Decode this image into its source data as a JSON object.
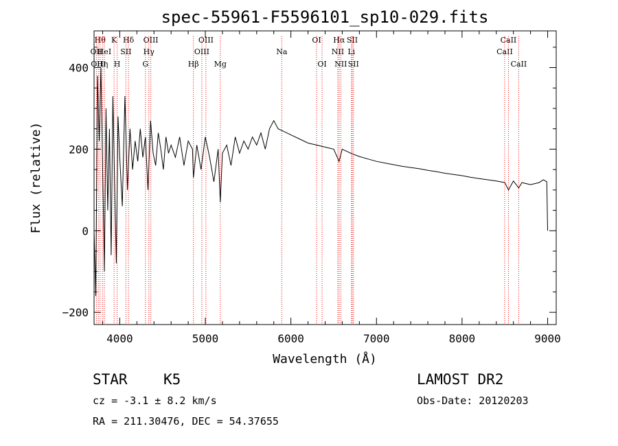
{
  "chart_data": {
    "type": "line",
    "title": "spec-55961-F5596101_sp10-029.fits",
    "xlabel": "Wavelength (Å)",
    "ylabel": "Flux (relative)",
    "xlim": [
      3700,
      9100
    ],
    "ylim": [
      -230,
      490
    ],
    "x_ticks": [
      4000,
      5000,
      6000,
      7000,
      8000,
      9000
    ],
    "y_ticks": [
      -200,
      0,
      200,
      400
    ],
    "grid": false,
    "line_color": "#000000",
    "marker_color": "#ff0000",
    "series": [
      {
        "x": [
          3700,
          3720,
          3740,
          3760,
          3780,
          3800,
          3820,
          3840,
          3860,
          3880,
          3900,
          3920,
          3940,
          3960,
          3980,
          4000,
          4030,
          4060,
          4090,
          4120,
          4150,
          4180,
          4210,
          4240,
          4270,
          4300,
          4330,
          4360,
          4390,
          4420,
          4450,
          4480,
          4510,
          4540,
          4570,
          4600,
          4650,
          4700,
          4750,
          4800,
          4850,
          4861,
          4900,
          4950,
          5000,
          5050,
          5100,
          5150,
          5175,
          5200,
          5250,
          5300,
          5350,
          5400,
          5450,
          5500,
          5550,
          5600,
          5650,
          5700,
          5750,
          5800,
          5850,
          5900,
          5950,
          6000,
          6100,
          6200,
          6300,
          6400,
          6500,
          6563,
          6600,
          6700,
          6800,
          6900,
          7000,
          7100,
          7200,
          7300,
          7400,
          7500,
          7600,
          7700,
          7800,
          7900,
          8000,
          8100,
          8200,
          8300,
          8400,
          8500,
          8542,
          8600,
          8662,
          8700,
          8800,
          8900,
          8950,
          8990,
          9000
        ],
        "y": [
          0,
          -160,
          380,
          220,
          400,
          150,
          -100,
          300,
          50,
          250,
          -60,
          330,
          120,
          -80,
          280,
          180,
          60,
          330,
          100,
          250,
          150,
          220,
          170,
          250,
          180,
          230,
          100,
          270,
          190,
          160,
          240,
          200,
          150,
          230,
          190,
          210,
          180,
          230,
          160,
          220,
          200,
          130,
          210,
          150,
          230,
          180,
          120,
          200,
          70,
          190,
          210,
          160,
          230,
          190,
          220,
          200,
          230,
          210,
          240,
          200,
          250,
          270,
          250,
          245,
          240,
          235,
          225,
          215,
          210,
          205,
          200,
          170,
          200,
          190,
          182,
          176,
          170,
          166,
          162,
          158,
          155,
          152,
          148,
          145,
          141,
          138,
          135,
          131,
          128,
          125,
          122,
          118,
          100,
          122,
          105,
          118,
          113,
          118,
          125,
          120,
          0
        ]
      }
    ],
    "line_markers": [
      {
        "wavelength": 3727,
        "label": "OII",
        "row": 1
      },
      {
        "wavelength": 3750,
        "label": "OIII",
        "row": 2
      },
      {
        "wavelength": 3770,
        "label": "Hθ",
        "row": 0
      },
      {
        "wavelength": 3798,
        "label": "Hη",
        "row": 2
      },
      {
        "wavelength": 3820,
        "label": "HeI",
        "row": 1
      },
      {
        "wavelength": 3934,
        "label": "K",
        "row": 0
      },
      {
        "wavelength": 3969,
        "label": "H",
        "row": 2
      },
      {
        "wavelength": 4072,
        "label": "SII",
        "row": 1
      },
      {
        "wavelength": 4102,
        "label": "Hδ",
        "row": 0
      },
      {
        "wavelength": 4300,
        "label": "G",
        "row": 2
      },
      {
        "wavelength": 4340,
        "label": "Hγ",
        "row": 1
      },
      {
        "wavelength": 4363,
        "label": "OIII",
        "row": 0
      },
      {
        "wavelength": 4861,
        "label": "Hβ",
        "row": 2
      },
      {
        "wavelength": 4959,
        "label": "OIII",
        "row": 1
      },
      {
        "wavelength": 5007,
        "label": "OIII",
        "row": 0
      },
      {
        "wavelength": 5175,
        "label": "Mg",
        "row": 2
      },
      {
        "wavelength": 5893,
        "label": "Na",
        "row": 1
      },
      {
        "wavelength": 6300,
        "label": "OI",
        "row": 0
      },
      {
        "wavelength": 6364,
        "label": "OI",
        "row": 2
      },
      {
        "wavelength": 6548,
        "label": "NII",
        "row": 1
      },
      {
        "wavelength": 6563,
        "label": "Hα",
        "row": 0
      },
      {
        "wavelength": 6583,
        "label": "NII",
        "row": 2
      },
      {
        "wavelength": 6707,
        "label": "Li",
        "row": 1
      },
      {
        "wavelength": 6717,
        "label": "SII",
        "row": 0
      },
      {
        "wavelength": 6731,
        "label": "SII",
        "row": 2
      },
      {
        "wavelength": 8498,
        "label": "CaII",
        "row": 1
      },
      {
        "wavelength": 8542,
        "label": "CaII",
        "row": 0
      },
      {
        "wavelength": 8662,
        "label": "CaII",
        "row": 2
      }
    ]
  },
  "info": {
    "object_class": "STAR",
    "subclass": "K5",
    "redshift": "cz = -3.1 ± 8.2 km/s",
    "coords": "RA = 211.30476, DEC =  54.37655",
    "survey": "LAMOST DR2",
    "obs_date": "Obs-Date: 20120203"
  }
}
